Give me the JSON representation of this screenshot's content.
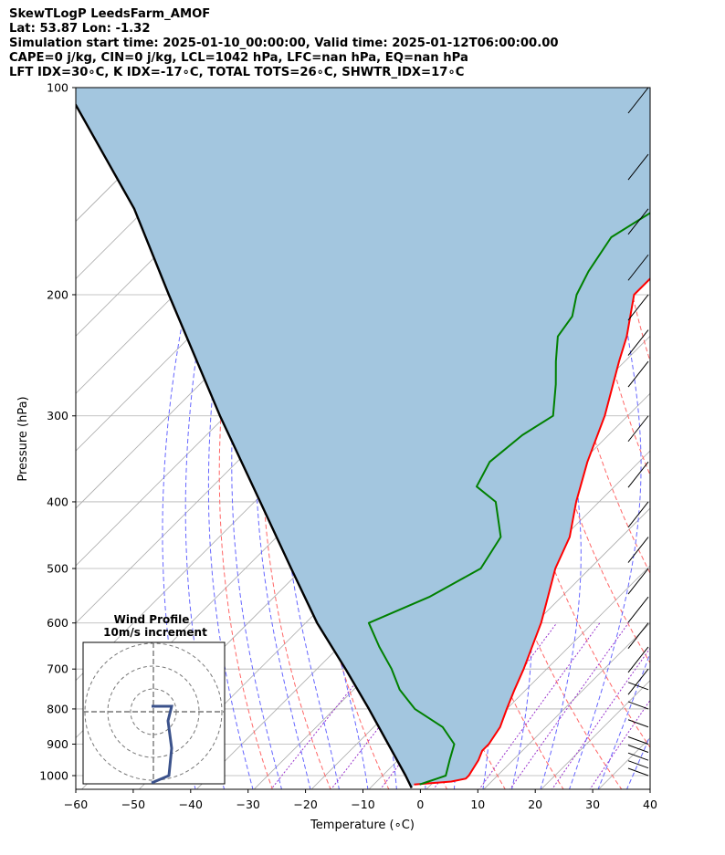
{
  "header": {
    "lines": [
      "SkewTLogP LeedsFarm_AMOF",
      "Lat: 53.87   Lon: -1.32",
      "Simulation start time: 2025-01-10_00:00:00, Valid time: 2025-01-12T06:00:00.00",
      "CAPE=0 j/kg, CIN=0 j/kg, LCL=1042 hPa, LFC=nan hPa, EQ=nan hPa",
      "LFT IDX=30∘C, K IDX=-17∘C, TOTAL TOTS=26∘C, SHWTR_IDX=17∘C"
    ]
  },
  "chart_data": [
    {
      "type": "line",
      "chart_kind": "skew-T log-P",
      "xlabel": "Temperature (∘C)",
      "ylabel": "Pressure (hPa)",
      "xlim": [
        -60,
        40
      ],
      "ylim": [
        1050,
        100
      ],
      "y_scale": "log",
      "skew": "45 degrees",
      "grid": true,
      "x_ticks": [
        -60,
        -50,
        -40,
        -30,
        -20,
        -10,
        0,
        10,
        20,
        30,
        40
      ],
      "x_tick_labels": [
        "−60",
        "−50",
        "−40",
        "−30",
        "−20",
        "−10",
        "0",
        "10",
        "20",
        "30",
        "40"
      ],
      "y_ticks": [
        1000,
        900,
        800,
        700,
        600,
        500,
        400,
        300,
        200,
        100
      ],
      "y_tick_labels": [
        "1000",
        "900",
        "800",
        "700",
        "600",
        "500",
        "400",
        "300",
        "200",
        "100"
      ],
      "colors": {
        "temperature": "#ff0000",
        "dewpoint": "#008000",
        "parcel": "#000000",
        "cape_fill": "#a3c6df",
        "dry_adiabat": "#ff6666",
        "moist_adiabat": "#6666ff",
        "mixing_ratio": "#9933cc",
        "isotherm": "#aaaaaa"
      },
      "series": [
        {
          "series_key": "temperature",
          "pressure_hpa": [
            1030,
            1020,
            1010,
            1000,
            950,
            920,
            900,
            850,
            800,
            750,
            700,
            600,
            500,
            450,
            400,
            350,
            300,
            250,
            230,
            200,
            185,
            170,
            160,
            145,
            130,
            110,
            100
          ],
          "temperature_c": [
            -3,
            3,
            5,
            5,
            4,
            3,
            3,
            2,
            0,
            -2,
            -4,
            -9,
            -16,
            -19,
            -24,
            -29,
            -34,
            -41,
            -44,
            -50,
            -50,
            -50,
            -51,
            -52,
            -52,
            -50,
            -49
          ]
        },
        {
          "series_key": "dewpoint",
          "pressure_hpa": [
            1030,
            1020,
            1010,
            1000,
            950,
            900,
            850,
            800,
            750,
            700,
            650,
            600,
            550,
            500,
            450,
            400,
            380,
            350,
            320,
            300,
            270,
            250,
            230,
            215,
            200,
            185,
            165,
            150,
            140,
            120,
            100
          ],
          "temperature_c": [
            -2,
            -1,
            0,
            1,
            -1,
            -3,
            -8,
            -16,
            -22,
            -27,
            -33,
            -39,
            -33,
            -29,
            -31,
            -38,
            -44,
            -46,
            -45,
            -43,
            -48,
            -52,
            -56,
            -57,
            -60,
            -62,
            -64,
            -61,
            -62,
            -62,
            -58
          ]
        },
        {
          "series_key": "parcel",
          "pressure_hpa": [
            1042,
            1000,
            900,
            800,
            700,
            600,
            500,
            400,
            300,
            200,
            150,
            100
          ],
          "temperature_c": [
            -2.8,
            -6,
            -14.5,
            -24,
            -35,
            -48,
            -62,
            -79,
            -101,
            -131,
            -152,
            -185
          ]
        }
      ]
    },
    {
      "type": "scatter",
      "chart_kind": "hodograph",
      "title": "Wind Profile",
      "subtitle": "10m/s increment",
      "ring_increment_ms": 10
    }
  ]
}
